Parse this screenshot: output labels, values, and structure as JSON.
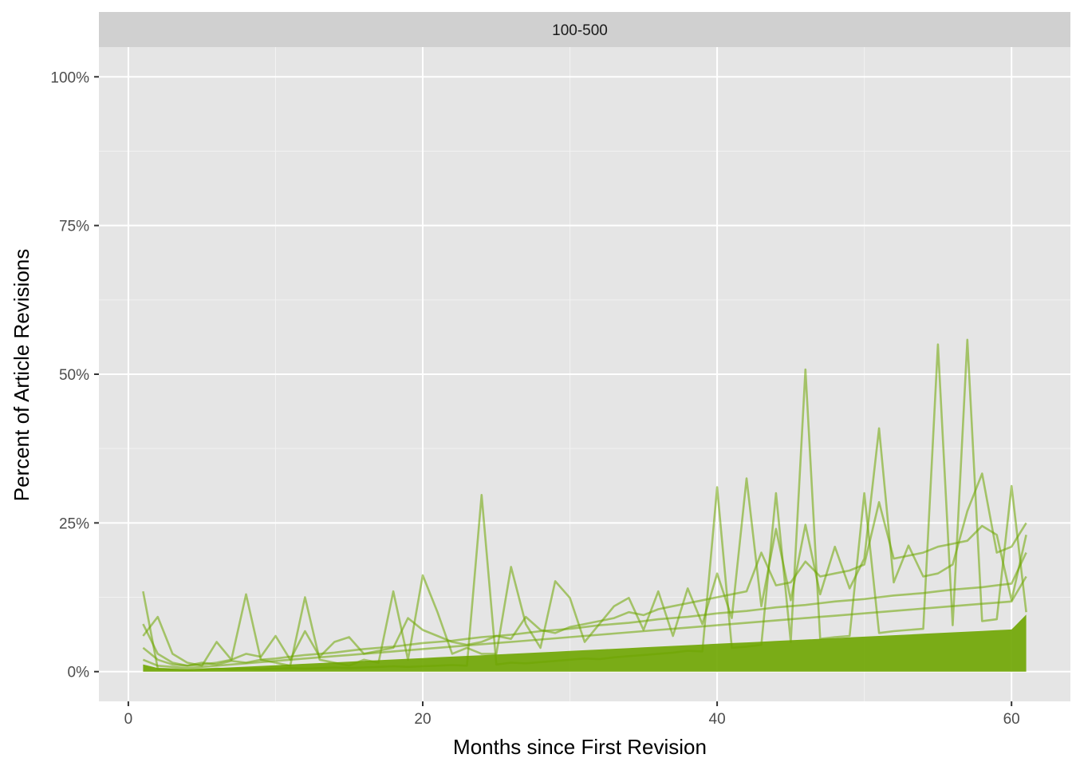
{
  "chart_data": {
    "type": "line",
    "facet_label": "100-500",
    "xlabel": "Months since First Revision",
    "ylabel": "Percent of Article Revisions",
    "xlim": [
      -2,
      64
    ],
    "ylim": [
      -0.05,
      1.05
    ],
    "x_ticks": [
      0,
      20,
      40,
      60
    ],
    "x_tick_labels": [
      "0",
      "20",
      "40",
      "60"
    ],
    "y_ticks": [
      0,
      0.25,
      0.5,
      0.75,
      1.0
    ],
    "y_tick_labels": [
      "0%",
      "25%",
      "50%",
      "75%",
      "100%"
    ],
    "grid": true,
    "legend": "none",
    "line_color": "#6ea500",
    "panel_background": "#e5e5e5",
    "strip_background": "#d0d0d0",
    "x": [
      1,
      2,
      3,
      4,
      5,
      6,
      7,
      8,
      9,
      10,
      11,
      12,
      13,
      14,
      15,
      16,
      17,
      18,
      19,
      20,
      21,
      22,
      23,
      24,
      25,
      26,
      27,
      28,
      29,
      30,
      31,
      32,
      33,
      34,
      35,
      36,
      37,
      38,
      39,
      40,
      41,
      42,
      43,
      44,
      45,
      46,
      47,
      48,
      49,
      50,
      51,
      52,
      53,
      54,
      55,
      56,
      57,
      58,
      59,
      60,
      61
    ],
    "series": [
      {
        "values": [
          0.135,
          0.005,
          0.004,
          0.003,
          0.004,
          0.005,
          0.004,
          0.005,
          0.004,
          0.005,
          0.006,
          0.005,
          0.006,
          0.007,
          0.006,
          0.007,
          0.008,
          0.009,
          0.008,
          0.009,
          0.01,
          0.011,
          0.01,
          0.297,
          0.012,
          0.015,
          0.014,
          0.016,
          0.018,
          0.02,
          0.022,
          0.021,
          0.024,
          0.026,
          0.028,
          0.03,
          0.032,
          0.035,
          0.034,
          0.31,
          0.04,
          0.042,
          0.045,
          0.3,
          0.05,
          0.508,
          0.055,
          0.058,
          0.06,
          0.3,
          0.065,
          0.068,
          0.07,
          0.072,
          0.55,
          0.078,
          0.558,
          0.085,
          0.088,
          0.312,
          0.1
        ]
      },
      {
        "values": [
          0.06,
          0.092,
          0.03,
          0.015,
          0.01,
          0.05,
          0.02,
          0.13,
          0.02,
          0.015,
          0.01,
          0.125,
          0.02,
          0.015,
          0.01,
          0.02,
          0.015,
          0.135,
          0.02,
          0.162,
          0.1,
          0.03,
          0.04,
          0.03,
          0.03,
          0.176,
          0.08,
          0.04,
          0.152,
          0.124,
          0.05,
          0.08,
          0.11,
          0.124,
          0.07,
          0.135,
          0.06,
          0.14,
          0.08,
          0.165,
          0.09,
          0.325,
          0.11,
          0.24,
          0.12,
          0.247,
          0.13,
          0.21,
          0.14,
          0.19,
          0.409,
          0.15,
          0.212,
          0.16,
          0.165,
          0.18,
          0.27,
          0.333,
          0.2,
          0.21,
          0.25
        ]
      },
      {
        "values": [
          0.08,
          0.03,
          0.015,
          0.01,
          0.012,
          0.015,
          0.02,
          0.03,
          0.025,
          0.06,
          0.02,
          0.068,
          0.025,
          0.05,
          0.058,
          0.03,
          0.035,
          0.04,
          0.09,
          0.07,
          0.06,
          0.05,
          0.045,
          0.05,
          0.06,
          0.055,
          0.092,
          0.07,
          0.065,
          0.075,
          0.08,
          0.085,
          0.09,
          0.1,
          0.095,
          0.105,
          0.11,
          0.115,
          0.12,
          0.125,
          0.13,
          0.135,
          0.2,
          0.145,
          0.15,
          0.185,
          0.16,
          0.165,
          0.17,
          0.18,
          0.285,
          0.19,
          0.195,
          0.2,
          0.21,
          0.215,
          0.22,
          0.245,
          0.23,
          0.12,
          0.23
        ]
      },
      {
        "values": [
          0.04,
          0.02,
          0.012,
          0.01,
          0.015,
          0.012,
          0.018,
          0.015,
          0.02,
          0.022,
          0.025,
          0.028,
          0.03,
          0.032,
          0.035,
          0.038,
          0.04,
          0.042,
          0.045,
          0.048,
          0.05,
          0.052,
          0.055,
          0.058,
          0.06,
          0.062,
          0.065,
          0.068,
          0.07,
          0.072,
          0.075,
          0.078,
          0.08,
          0.082,
          0.085,
          0.088,
          0.09,
          0.092,
          0.095,
          0.098,
          0.1,
          0.102,
          0.105,
          0.108,
          0.11,
          0.112,
          0.115,
          0.118,
          0.12,
          0.122,
          0.125,
          0.128,
          0.13,
          0.132,
          0.135,
          0.138,
          0.14,
          0.142,
          0.145,
          0.148,
          0.2
        ]
      },
      {
        "values": [
          0.02,
          0.01,
          0.008,
          0.006,
          0.008,
          0.01,
          0.012,
          0.014,
          0.016,
          0.018,
          0.02,
          0.022,
          0.024,
          0.026,
          0.028,
          0.03,
          0.032,
          0.034,
          0.036,
          0.038,
          0.04,
          0.042,
          0.044,
          0.046,
          0.048,
          0.05,
          0.052,
          0.054,
          0.056,
          0.058,
          0.06,
          0.062,
          0.064,
          0.066,
          0.068,
          0.07,
          0.072,
          0.074,
          0.076,
          0.078,
          0.08,
          0.082,
          0.084,
          0.086,
          0.088,
          0.09,
          0.092,
          0.094,
          0.096,
          0.098,
          0.1,
          0.102,
          0.104,
          0.106,
          0.108,
          0.11,
          0.112,
          0.114,
          0.116,
          0.118,
          0.16
        ]
      }
    ],
    "series_count_description_free": true
  }
}
